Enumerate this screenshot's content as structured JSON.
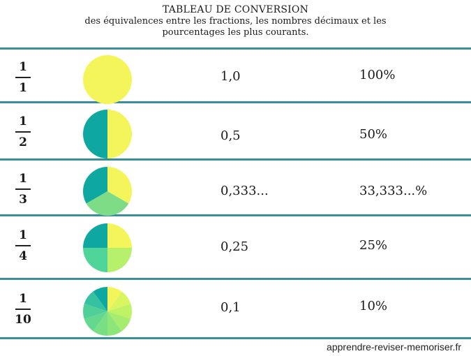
{
  "header": {
    "title": "TABLEAU DE CONVERSION",
    "subtitle_line1": "des équivalences entre les fractions, les nombres décimaux et les",
    "subtitle_line2": "pourcentages les plus courants."
  },
  "colors": {
    "rule": "#3a8f99",
    "teal": "#0fa8a1",
    "yellow": "#f4f55a",
    "green_light": "#7fdc86",
    "green_mid": "#4fd49a",
    "lime": "#b7f06a"
  },
  "rows": [
    {
      "numerator": "1",
      "denominator": "1",
      "decimal": "1,0",
      "percent": "100%",
      "parts": 1
    },
    {
      "numerator": "1",
      "denominator": "2",
      "decimal": "0,5",
      "percent": "50%",
      "parts": 2
    },
    {
      "numerator": "1",
      "denominator": "3",
      "decimal": "0,333...",
      "percent": "33,333...%",
      "parts": 3
    },
    {
      "numerator": "1",
      "denominator": "4",
      "decimal": "0,25",
      "percent": "25%",
      "parts": 4
    },
    {
      "numerator": "1",
      "denominator": "10",
      "decimal": "0,1",
      "percent": "10%",
      "parts": 10
    }
  ],
  "footer": {
    "site": "apprendre-reviser-memoriser.fr"
  }
}
